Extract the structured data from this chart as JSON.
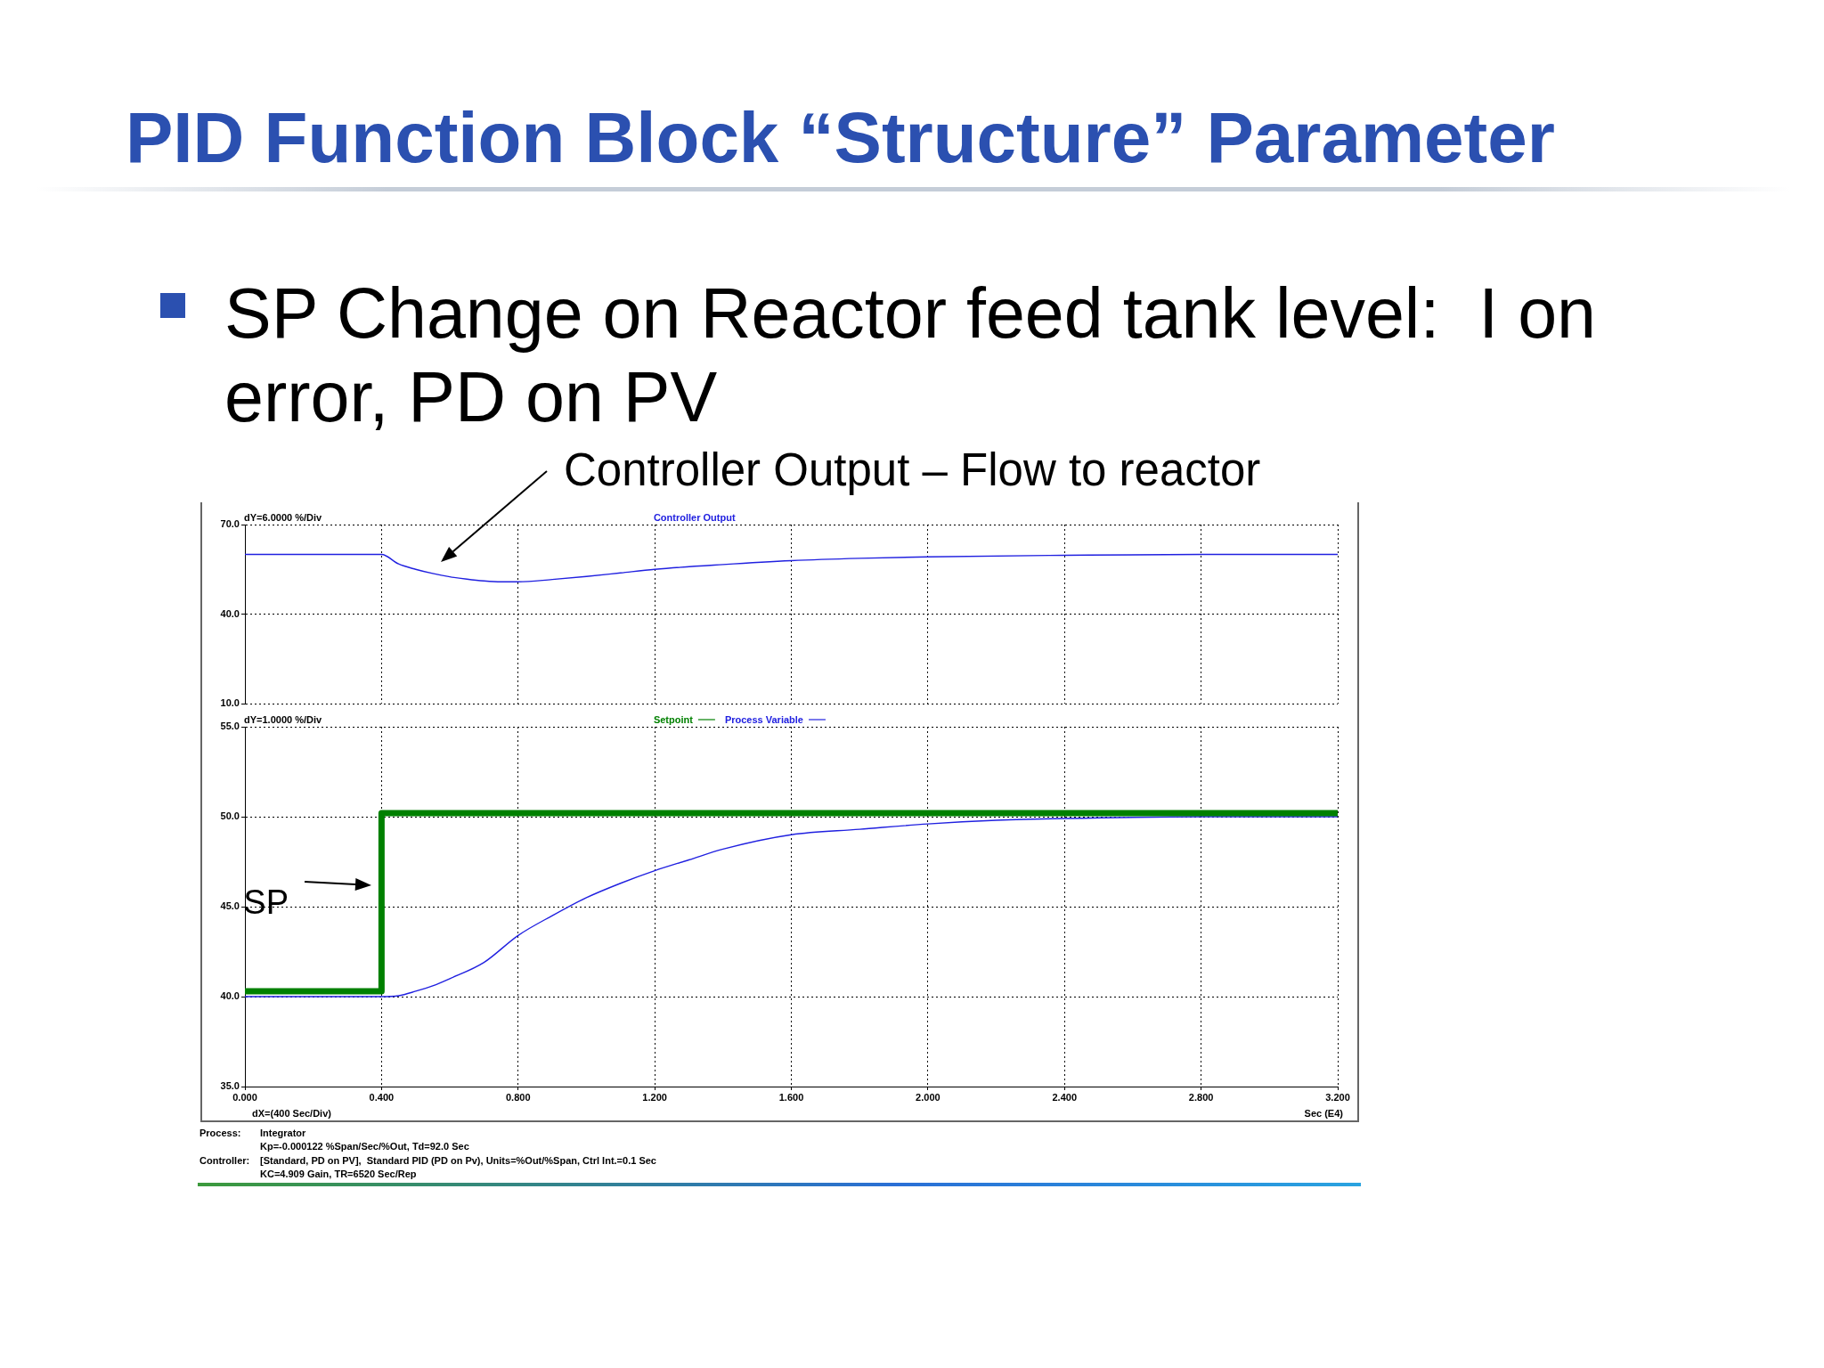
{
  "chart_data": [
    {
      "type": "line",
      "title": "PID Function Block “Structure” Parameter",
      "subtitle": "SP Change on Reactor feed tank level:  I on error, PD on PV",
      "ylabel": "dY=6.0000 %/Div",
      "x": [
        0,
        0.4,
        0.45,
        0.5,
        0.55,
        0.6,
        0.65,
        0.7,
        0.75,
        0.8,
        0.9,
        1.0,
        1.1,
        1.2,
        1.4,
        1.6,
        1.8,
        2.0,
        2.4,
        2.8,
        3.2
      ],
      "series": [
        {
          "name": "Controller Output",
          "color": "#2020e0",
          "values": [
            60,
            60,
            56.8,
            55.0,
            53.6,
            52.5,
            51.7,
            51.1,
            50.8,
            50.8,
            51.6,
            52.6,
            53.8,
            55.0,
            56.6,
            57.9,
            58.7,
            59.2,
            59.7,
            60.0,
            60.0
          ]
        }
      ],
      "xlim": [
        0,
        3.2
      ],
      "xticks": [
        0,
        0.4,
        0.8,
        1.2,
        1.6,
        2.0,
        2.4,
        2.8,
        3.2
      ],
      "ylim": [
        10,
        70
      ],
      "yticks": [
        {
          "value": 10,
          "label": "10.0"
        },
        {
          "value": 40,
          "label": "40.0"
        },
        {
          "value": 70,
          "label": "70.0"
        }
      ],
      "grid": true,
      "legend": "top",
      "tick_labels": "y",
      "annotations": [
        "Controller Output – Flow to reactor"
      ]
    },
    {
      "type": "line",
      "ylabel": "dY=1.0000 %/Div",
      "xlabel": "Sec (E4)",
      "series": [
        {
          "name": "Setpoint",
          "type": "step",
          "color": "#008000",
          "x": [
            0,
            0.4,
            3.2
          ],
          "values": [
            40.3,
            50.2,
            50.2
          ]
        },
        {
          "name": "Process Variable",
          "color": "#2020e0",
          "x": [
            0,
            0.4,
            0.45,
            0.5,
            0.55,
            0.6,
            0.7,
            0.8,
            0.9,
            1.0,
            1.1,
            1.2,
            1.3,
            1.4,
            1.6,
            1.8,
            2.0,
            2.2,
            2.4,
            2.8,
            3.2
          ],
          "values": [
            40.0,
            40.0,
            40.05,
            40.3,
            40.6,
            41.0,
            41.9,
            43.4,
            44.5,
            45.5,
            46.3,
            47.0,
            47.6,
            48.2,
            49.0,
            49.3,
            49.6,
            49.8,
            49.9,
            50.0,
            50.0
          ]
        }
      ],
      "xlim": [
        0,
        3.2
      ],
      "xticks": [
        {
          "value": 0,
          "label": "0.000"
        },
        {
          "value": 0.4,
          "label": "0.400"
        },
        {
          "value": 0.8,
          "label": "0.800"
        },
        {
          "value": 1.2,
          "label": "1.200"
        },
        {
          "value": 1.6,
          "label": "1.600"
        },
        {
          "value": 2.0,
          "label": "2.000"
        },
        {
          "value": 2.4,
          "label": "2.400"
        },
        {
          "value": 2.8,
          "label": "2.800"
        },
        {
          "value": 3.2,
          "label": "3.200"
        }
      ],
      "ylim": [
        35,
        55
      ],
      "yticks": [
        {
          "value": 35,
          "label": "35.0"
        },
        {
          "value": 40,
          "label": "40.0"
        },
        {
          "value": 45,
          "label": "45.0"
        },
        {
          "value": 50,
          "label": "50.0"
        },
        {
          "value": 55,
          "label": "55.0"
        }
      ],
      "grid": true,
      "legend": "top",
      "annotations": [
        "SP",
        "dX=(400 Sec/Div)"
      ]
    },
    {
      "type": "other",
      "annotations": [
        "Process:",
        "Integrator\nKp=-0.000122 %Span/Sec/%Out, Td=92.0 Sec",
        "Controller:",
        "[Standard, PD on PV],  Standard PID (PD on Pv), Units=%Out/%Span, Ctrl Int.=0.1 Sec\nKC=4.909 Gain, TR=6520 Sec/Rep"
      ]
    }
  ]
}
